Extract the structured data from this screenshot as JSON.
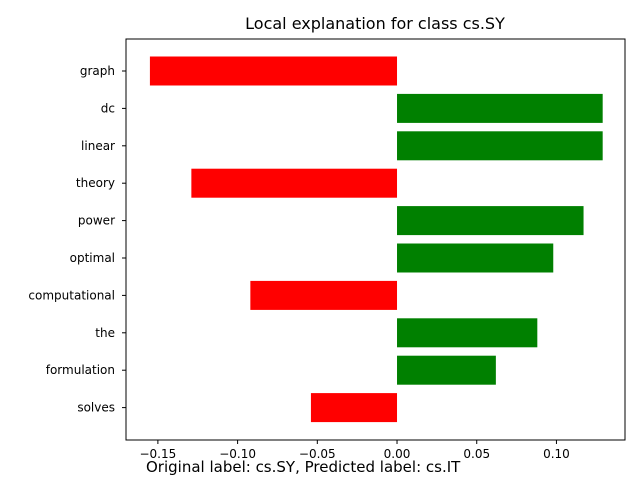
{
  "chart_data": {
    "type": "bar",
    "orientation": "horizontal",
    "title": "Local explanation for class cs.SY",
    "categories": [
      "graph",
      "dc",
      "linear",
      "theory",
      "power",
      "optimal",
      "computational",
      "the",
      "formulation",
      "solves"
    ],
    "values": [
      -0.155,
      0.129,
      0.129,
      -0.129,
      0.117,
      0.098,
      -0.092,
      0.088,
      0.062,
      -0.054
    ],
    "xlim": [
      -0.17,
      0.143
    ],
    "xticks": [
      -0.15,
      -0.1,
      -0.05,
      0.0,
      0.05,
      0.1
    ],
    "xtick_labels": [
      "−0.15",
      "−0.10",
      "−0.05",
      "0.00",
      "0.05",
      "0.10"
    ],
    "positive_color": "#008000",
    "negative_color": "#ff0000",
    "grid": false
  },
  "caption": "Original label: cs.SY, Predicted label: cs.IT"
}
